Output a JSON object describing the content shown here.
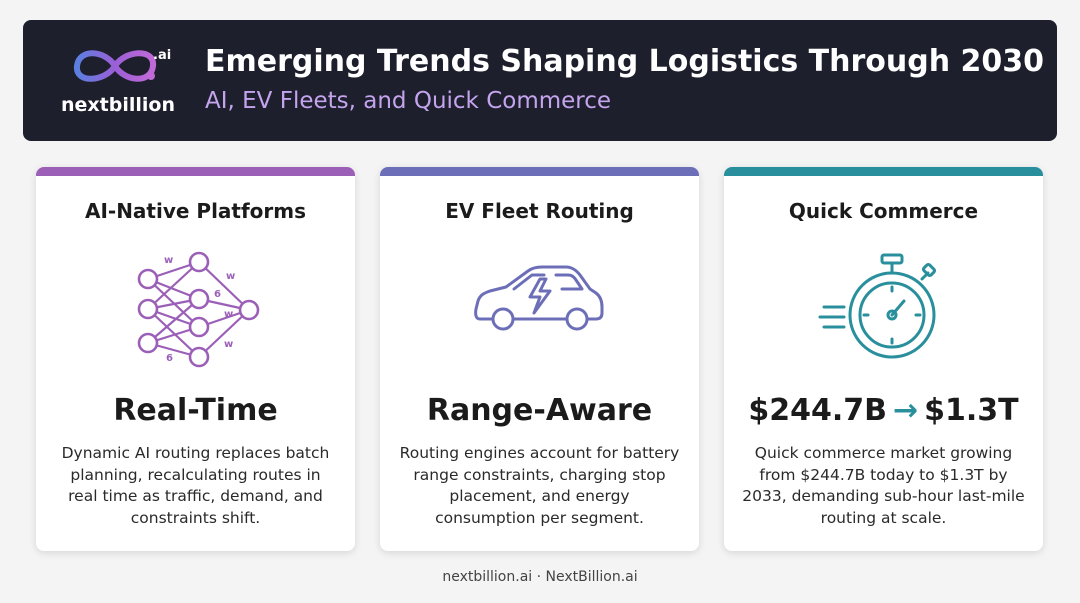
{
  "header": {
    "logo_text": "nextbillion",
    "logo_suffix": ".ai",
    "title": "Emerging Trends Shaping Logistics Through 2030",
    "subtitle": "AI, EV Fleets, and Quick Commerce"
  },
  "cards": [
    {
      "title": "AI-Native Platforms",
      "icon": "neural-network-icon",
      "icon_labels": [
        "w",
        "w",
        "6",
        "w",
        "w",
        "6"
      ],
      "stat": "Real-Time",
      "description": "Dynamic AI routing replaces batch planning, recalculating routes in real time as traffic, demand, and constraints shift.",
      "accent": "#9b5fb7"
    },
    {
      "title": "EV Fleet Routing",
      "icon": "electric-car-icon",
      "stat": "Range-Aware",
      "description": "Routing engines account for battery range constraints, charging stop placement, and energy consumption per segment.",
      "accent": "#6c6fb8"
    },
    {
      "title": "Quick Commerce",
      "icon": "stopwatch-icon",
      "stat_from": "$244.7B",
      "stat_arrow": "→",
      "stat_to": "$1.3T",
      "description": "Quick commerce market growing from $244.7B today to $1.3T by 2033, demanding sub-hour last-mile routing at scale.",
      "accent": "#2a8f9c"
    }
  ],
  "footer": {
    "text": "nextbillion.ai · NextBillion.ai"
  },
  "colors": {
    "header_bg": "#1d1f2c",
    "subtitle": "#c5a4ee",
    "purple": "#9b5fb7",
    "indigo": "#6c6fb8",
    "teal": "#2a8f9c"
  }
}
